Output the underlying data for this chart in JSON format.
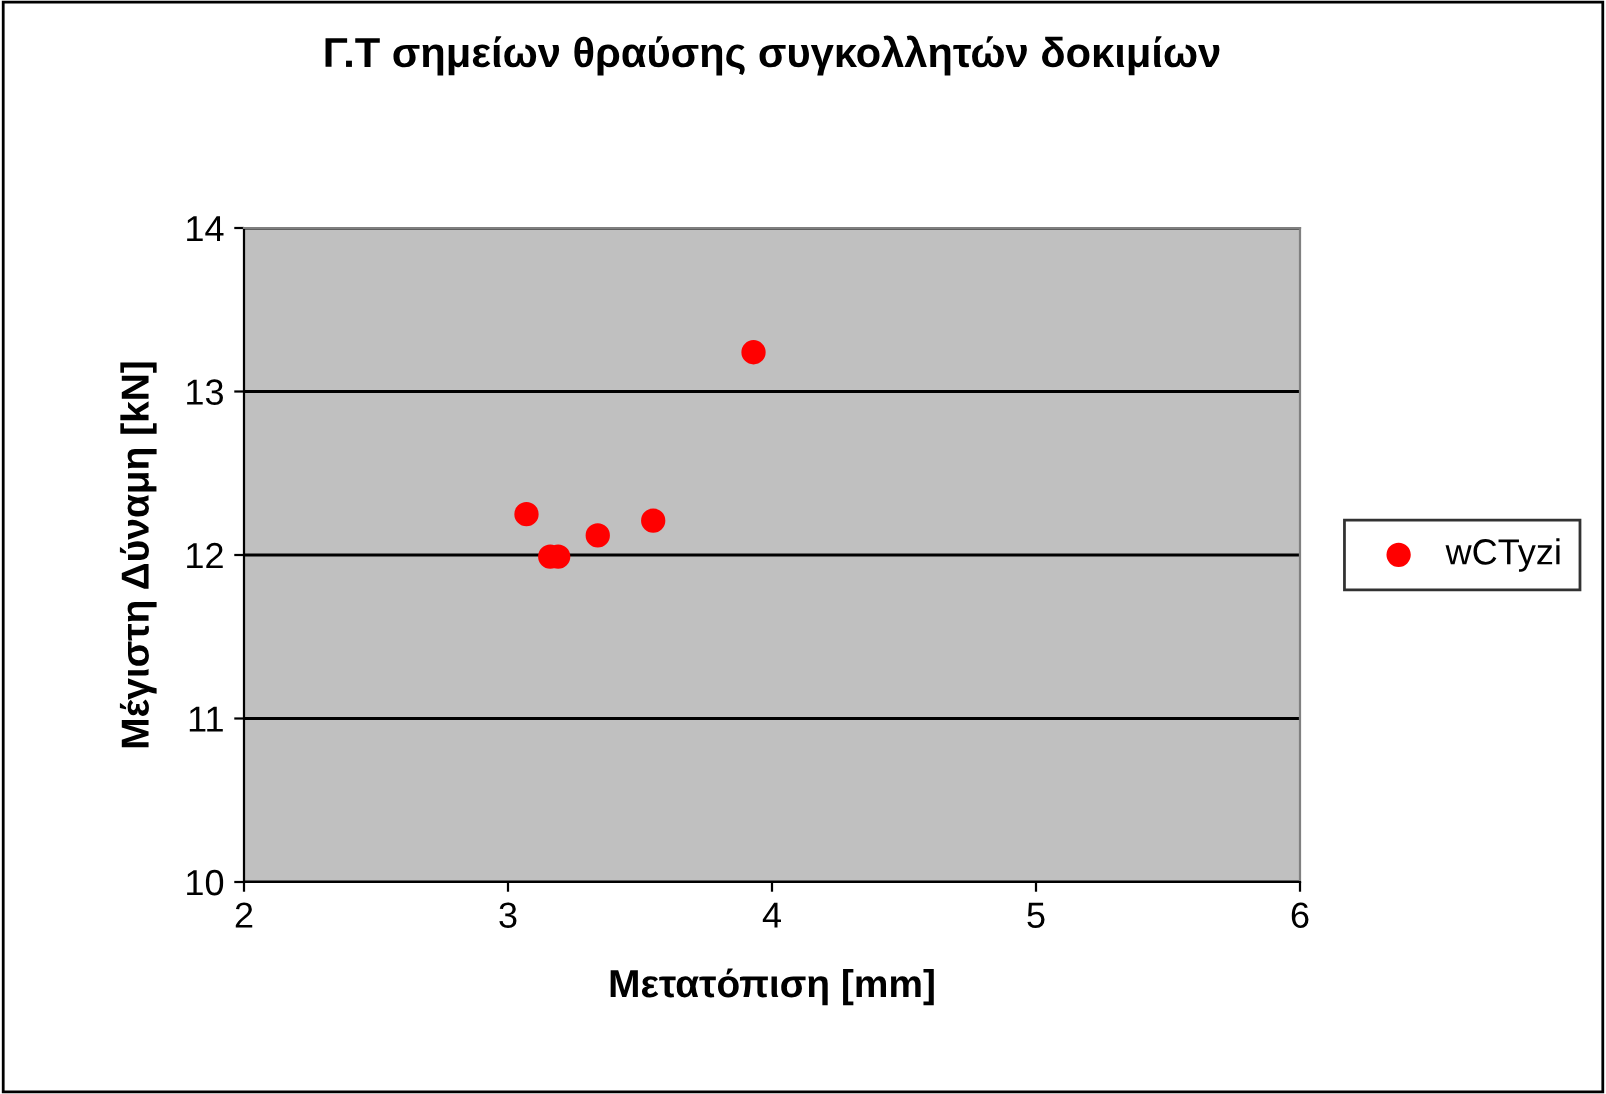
{
  "chart_data": {
    "type": "scatter",
    "title": "Γ.Τ σημείων θραύσης συγκολλητών δοκιμίων",
    "xlabel": "Μετατόπιση [mm]",
    "ylabel": "Μέγιστη Δύναμη [kN]",
    "series": [
      {
        "name": "wCTyzi",
        "color": "#ff0000",
        "x": [
          3.07,
          3.16,
          3.19,
          3.34,
          3.55,
          3.93
        ],
        "values": [
          12.25,
          11.99,
          11.99,
          12.12,
          12.21,
          13.24
        ]
      }
    ],
    "xlim": [
      2,
      6
    ],
    "xticks": [
      2,
      3,
      4,
      5,
      6
    ],
    "ylim": [
      10,
      14
    ],
    "yticks": [
      10,
      11,
      12,
      13,
      14
    ],
    "grid": "y",
    "legend": "right",
    "marker": "circle"
  }
}
